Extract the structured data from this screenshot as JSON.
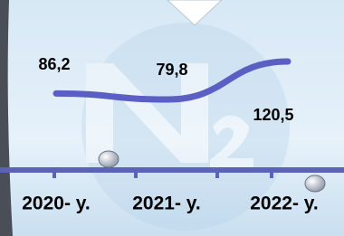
{
  "chart_data": {
    "type": "line",
    "categories": [
      "2020- y.",
      "2021- y.",
      "2022- y."
    ],
    "values": [
      86.2,
      79.8,
      120.5
    ],
    "value_labels": [
      "86,2",
      "79,8",
      "120,5"
    ],
    "color": "#5b5fc4"
  }
}
